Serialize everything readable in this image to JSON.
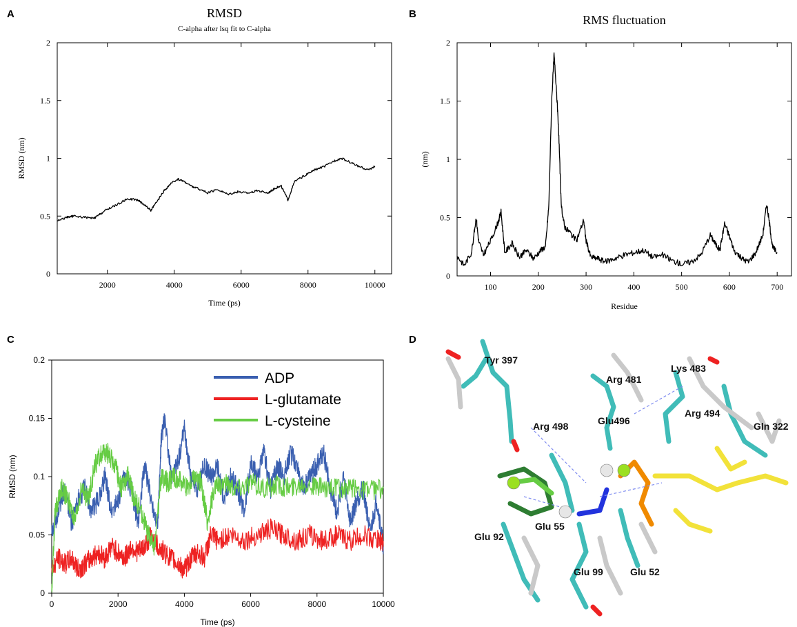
{
  "panels": {
    "A": "A",
    "B": "B",
    "C": "C",
    "D": "D"
  },
  "chart_data": [
    {
      "id": "A",
      "type": "line",
      "title": "RMSD",
      "subtitle": "C-alpha after lsq fit to C-alpha",
      "xlabel": "Time (ps)",
      "ylabel": "RMSD (nm)",
      "xlim": [
        500,
        10500
      ],
      "ylim": [
        0,
        2
      ],
      "xticks": [
        2000,
        4000,
        6000,
        8000,
        10000
      ],
      "xtick_labels": [
        "2000",
        "4000",
        "6000",
        "8000",
        "10000"
      ],
      "yticks": [
        0,
        0.5,
        1,
        1.5,
        2
      ],
      "ytick_labels": [
        "0",
        "0.5",
        "1",
        "1.5",
        "2"
      ],
      "grid": false,
      "series": [
        {
          "color": "#000000",
          "x": [
            500,
            800,
            1000,
            1300,
            1600,
            1800,
            2000,
            2300,
            2600,
            2900,
            3100,
            3300,
            3500,
            3700,
            3900,
            4100,
            4300,
            4500,
            4700,
            5000,
            5300,
            5600,
            5900,
            6200,
            6500,
            6800,
            7000,
            7200,
            7400,
            7600,
            7900,
            8200,
            8500,
            8800,
            9000,
            9300,
            9600,
            9800,
            10000
          ],
          "y": [
            0.46,
            0.49,
            0.5,
            0.49,
            0.48,
            0.52,
            0.56,
            0.6,
            0.65,
            0.64,
            0.6,
            0.55,
            0.63,
            0.72,
            0.78,
            0.82,
            0.8,
            0.76,
            0.74,
            0.7,
            0.73,
            0.69,
            0.71,
            0.7,
            0.72,
            0.7,
            0.74,
            0.76,
            0.64,
            0.8,
            0.85,
            0.9,
            0.93,
            0.98,
            1.0,
            0.96,
            0.92,
            0.9,
            0.93
          ]
        }
      ]
    },
    {
      "id": "B",
      "type": "line",
      "title": "RMS fluctuation",
      "xlabel": "Residue",
      "ylabel": "(nm)",
      "xlim": [
        30,
        730
      ],
      "ylim": [
        0,
        2
      ],
      "xticks": [
        100,
        200,
        300,
        400,
        500,
        600,
        700
      ],
      "xtick_labels": [
        "100",
        "200",
        "300",
        "400",
        "500",
        "600",
        "700"
      ],
      "yticks": [
        0,
        0.5,
        1,
        1.5,
        2
      ],
      "ytick_labels": [
        "0",
        "0.5",
        "1",
        "1.5",
        "2"
      ],
      "grid": false,
      "series": [
        {
          "color": "#000000",
          "x": [
            30,
            45,
            60,
            70,
            75,
            85,
            100,
            115,
            122,
            130,
            145,
            160,
            175,
            190,
            205,
            215,
            222,
            228,
            233,
            238,
            243,
            248,
            255,
            265,
            280,
            295,
            300,
            310,
            325,
            340,
            360,
            380,
            400,
            420,
            440,
            460,
            480,
            500,
            520,
            540,
            560,
            570,
            580,
            590,
            600,
            610,
            625,
            640,
            655,
            670,
            678,
            684,
            690,
            700
          ],
          "y": [
            0.17,
            0.09,
            0.2,
            0.5,
            0.3,
            0.18,
            0.3,
            0.45,
            0.55,
            0.2,
            0.28,
            0.16,
            0.22,
            0.15,
            0.22,
            0.25,
            0.6,
            1.5,
            1.9,
            1.6,
            1.2,
            0.6,
            0.42,
            0.38,
            0.3,
            0.48,
            0.3,
            0.16,
            0.15,
            0.12,
            0.15,
            0.18,
            0.2,
            0.22,
            0.16,
            0.18,
            0.13,
            0.1,
            0.12,
            0.18,
            0.35,
            0.28,
            0.22,
            0.45,
            0.34,
            0.22,
            0.15,
            0.12,
            0.2,
            0.35,
            0.62,
            0.45,
            0.25,
            0.2
          ]
        }
      ]
    },
    {
      "id": "C",
      "type": "line",
      "xlabel": "Time (ps)",
      "ylabel": "RMSD (nm)",
      "xlim": [
        0,
        10000
      ],
      "ylim": [
        0,
        0.2
      ],
      "xticks": [
        0,
        2000,
        4000,
        6000,
        8000,
        10000
      ],
      "xtick_labels": [
        "0",
        "2000",
        "4000",
        "6000",
        "8000",
        "10000"
      ],
      "yticks": [
        0,
        0.05,
        0.1,
        0.15,
        0.2
      ],
      "ytick_labels": [
        "0",
        "0.05",
        "0.1",
        "0.15",
        "0.2"
      ],
      "grid": false,
      "legend_position": "top-right",
      "series": [
        {
          "name": "ADP",
          "color": "#3a5fb0",
          "x": [
            0,
            200,
            400,
            600,
            800,
            1000,
            1200,
            1400,
            1600,
            1800,
            2000,
            2200,
            2400,
            2600,
            2800,
            3000,
            3200,
            3300,
            3400,
            3600,
            3800,
            4000,
            4200,
            4400,
            4600,
            4800,
            5000,
            5200,
            5400,
            5600,
            5800,
            6000,
            6200,
            6400,
            6600,
            6800,
            7000,
            7200,
            7400,
            7600,
            7800,
            8000,
            8200,
            8400,
            8600,
            8800,
            9000,
            9200,
            9400,
            9600,
            9800,
            10000
          ],
          "y": [
            0.05,
            0.07,
            0.09,
            0.06,
            0.08,
            0.09,
            0.07,
            0.08,
            0.1,
            0.07,
            0.08,
            0.1,
            0.09,
            0.06,
            0.11,
            0.08,
            0.06,
            0.13,
            0.15,
            0.1,
            0.11,
            0.14,
            0.1,
            0.09,
            0.11,
            0.1,
            0.11,
            0.08,
            0.1,
            0.09,
            0.07,
            0.11,
            0.1,
            0.12,
            0.09,
            0.11,
            0.1,
            0.12,
            0.11,
            0.09,
            0.1,
            0.11,
            0.12,
            0.09,
            0.07,
            0.1,
            0.06,
            0.08,
            0.09,
            0.05,
            0.08,
            0.04
          ]
        },
        {
          "name": "L-glutamate",
          "color": "#ee2222",
          "x": [
            0,
            200,
            400,
            600,
            800,
            1000,
            1200,
            1400,
            1600,
            1800,
            2000,
            2200,
            2400,
            2600,
            2800,
            3000,
            3200,
            3400,
            3600,
            3800,
            4000,
            4200,
            4400,
            4600,
            4800,
            5000,
            5400,
            5800,
            6200,
            6600,
            7000,
            7400,
            7800,
            8200,
            8600,
            9000,
            9400,
            9800,
            10000
          ],
          "y": [
            0.02,
            0.03,
            0.025,
            0.03,
            0.02,
            0.025,
            0.03,
            0.035,
            0.03,
            0.04,
            0.035,
            0.03,
            0.04,
            0.035,
            0.04,
            0.05,
            0.04,
            0.035,
            0.03,
            0.025,
            0.02,
            0.03,
            0.035,
            0.03,
            0.05,
            0.045,
            0.05,
            0.045,
            0.05,
            0.055,
            0.05,
            0.045,
            0.05,
            0.045,
            0.05,
            0.045,
            0.05,
            0.045,
            0.045
          ]
        },
        {
          "name": "L-cysteine",
          "color": "#66cc44",
          "x": [
            0,
            100,
            300,
            500,
            700,
            900,
            1100,
            1300,
            1500,
            1700,
            1900,
            2100,
            2300,
            2500,
            2700,
            2900,
            3100,
            3300,
            3500,
            3700,
            3900,
            4100,
            4300,
            4500,
            4700,
            4900,
            5200,
            5600,
            6000,
            6400,
            6800,
            7200,
            7600,
            8000,
            8400,
            8800,
            9200,
            9600,
            10000
          ],
          "y": [
            0.0,
            0.07,
            0.09,
            0.08,
            0.06,
            0.09,
            0.08,
            0.11,
            0.12,
            0.12,
            0.11,
            0.09,
            0.1,
            0.08,
            0.07,
            0.05,
            0.04,
            0.1,
            0.095,
            0.1,
            0.095,
            0.09,
            0.1,
            0.095,
            0.06,
            0.09,
            0.095,
            0.09,
            0.095,
            0.09,
            0.093,
            0.09,
            0.095,
            0.09,
            0.092,
            0.088,
            0.09,
            0.088,
            0.09
          ]
        }
      ]
    }
  ],
  "structure": {
    "labels": [
      "Tyr 397",
      "Arg 481",
      "Lys 483",
      "Arg 498",
      "Glu496",
      "Arg 494",
      "Gln 322",
      "Glu 92",
      "Glu 55",
      "Glu 99",
      "Glu 52"
    ]
  }
}
